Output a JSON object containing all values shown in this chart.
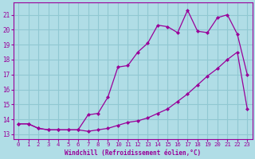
{
  "xlabel": "Windchill (Refroidissement éolien,°C)",
  "bg_color": "#b0dde6",
  "grid_color": "#90c8d2",
  "line_color": "#990099",
  "ylim": [
    12.7,
    21.8
  ],
  "xlim": [
    -0.5,
    23.5
  ],
  "yticks": [
    13,
    14,
    15,
    16,
    17,
    18,
    19,
    20,
    21
  ],
  "xticks": [
    0,
    1,
    2,
    3,
    4,
    5,
    6,
    7,
    8,
    9,
    10,
    11,
    12,
    13,
    14,
    15,
    16,
    17,
    18,
    19,
    20,
    21,
    22,
    23
  ],
  "series1_x": [
    0,
    1,
    2,
    3,
    4,
    5,
    6,
    7,
    8,
    9,
    10,
    11,
    12,
    13,
    14,
    15,
    16,
    17,
    18,
    19,
    20,
    21,
    22,
    23
  ],
  "series1_y": [
    13.7,
    13.7,
    13.4,
    13.3,
    13.3,
    13.3,
    13.3,
    13.2,
    13.3,
    13.4,
    13.6,
    13.8,
    13.9,
    14.1,
    14.4,
    14.7,
    15.2,
    15.7,
    16.3,
    16.9,
    17.4,
    18.0,
    18.5,
    14.7
  ],
  "series2_x": [
    0,
    1,
    2,
    3,
    4,
    5,
    6,
    7,
    8,
    9,
    10,
    11,
    12,
    13,
    14,
    15,
    16,
    17,
    18,
    19,
    20,
    21,
    22,
    23
  ],
  "series2_y": [
    13.7,
    13.7,
    13.4,
    13.3,
    13.3,
    13.3,
    13.3,
    14.3,
    14.4,
    15.5,
    17.5,
    17.6,
    18.5,
    19.1,
    20.3,
    20.2,
    19.8,
    21.3,
    19.9,
    19.8,
    20.8,
    21.0,
    19.7,
    17.0
  ]
}
